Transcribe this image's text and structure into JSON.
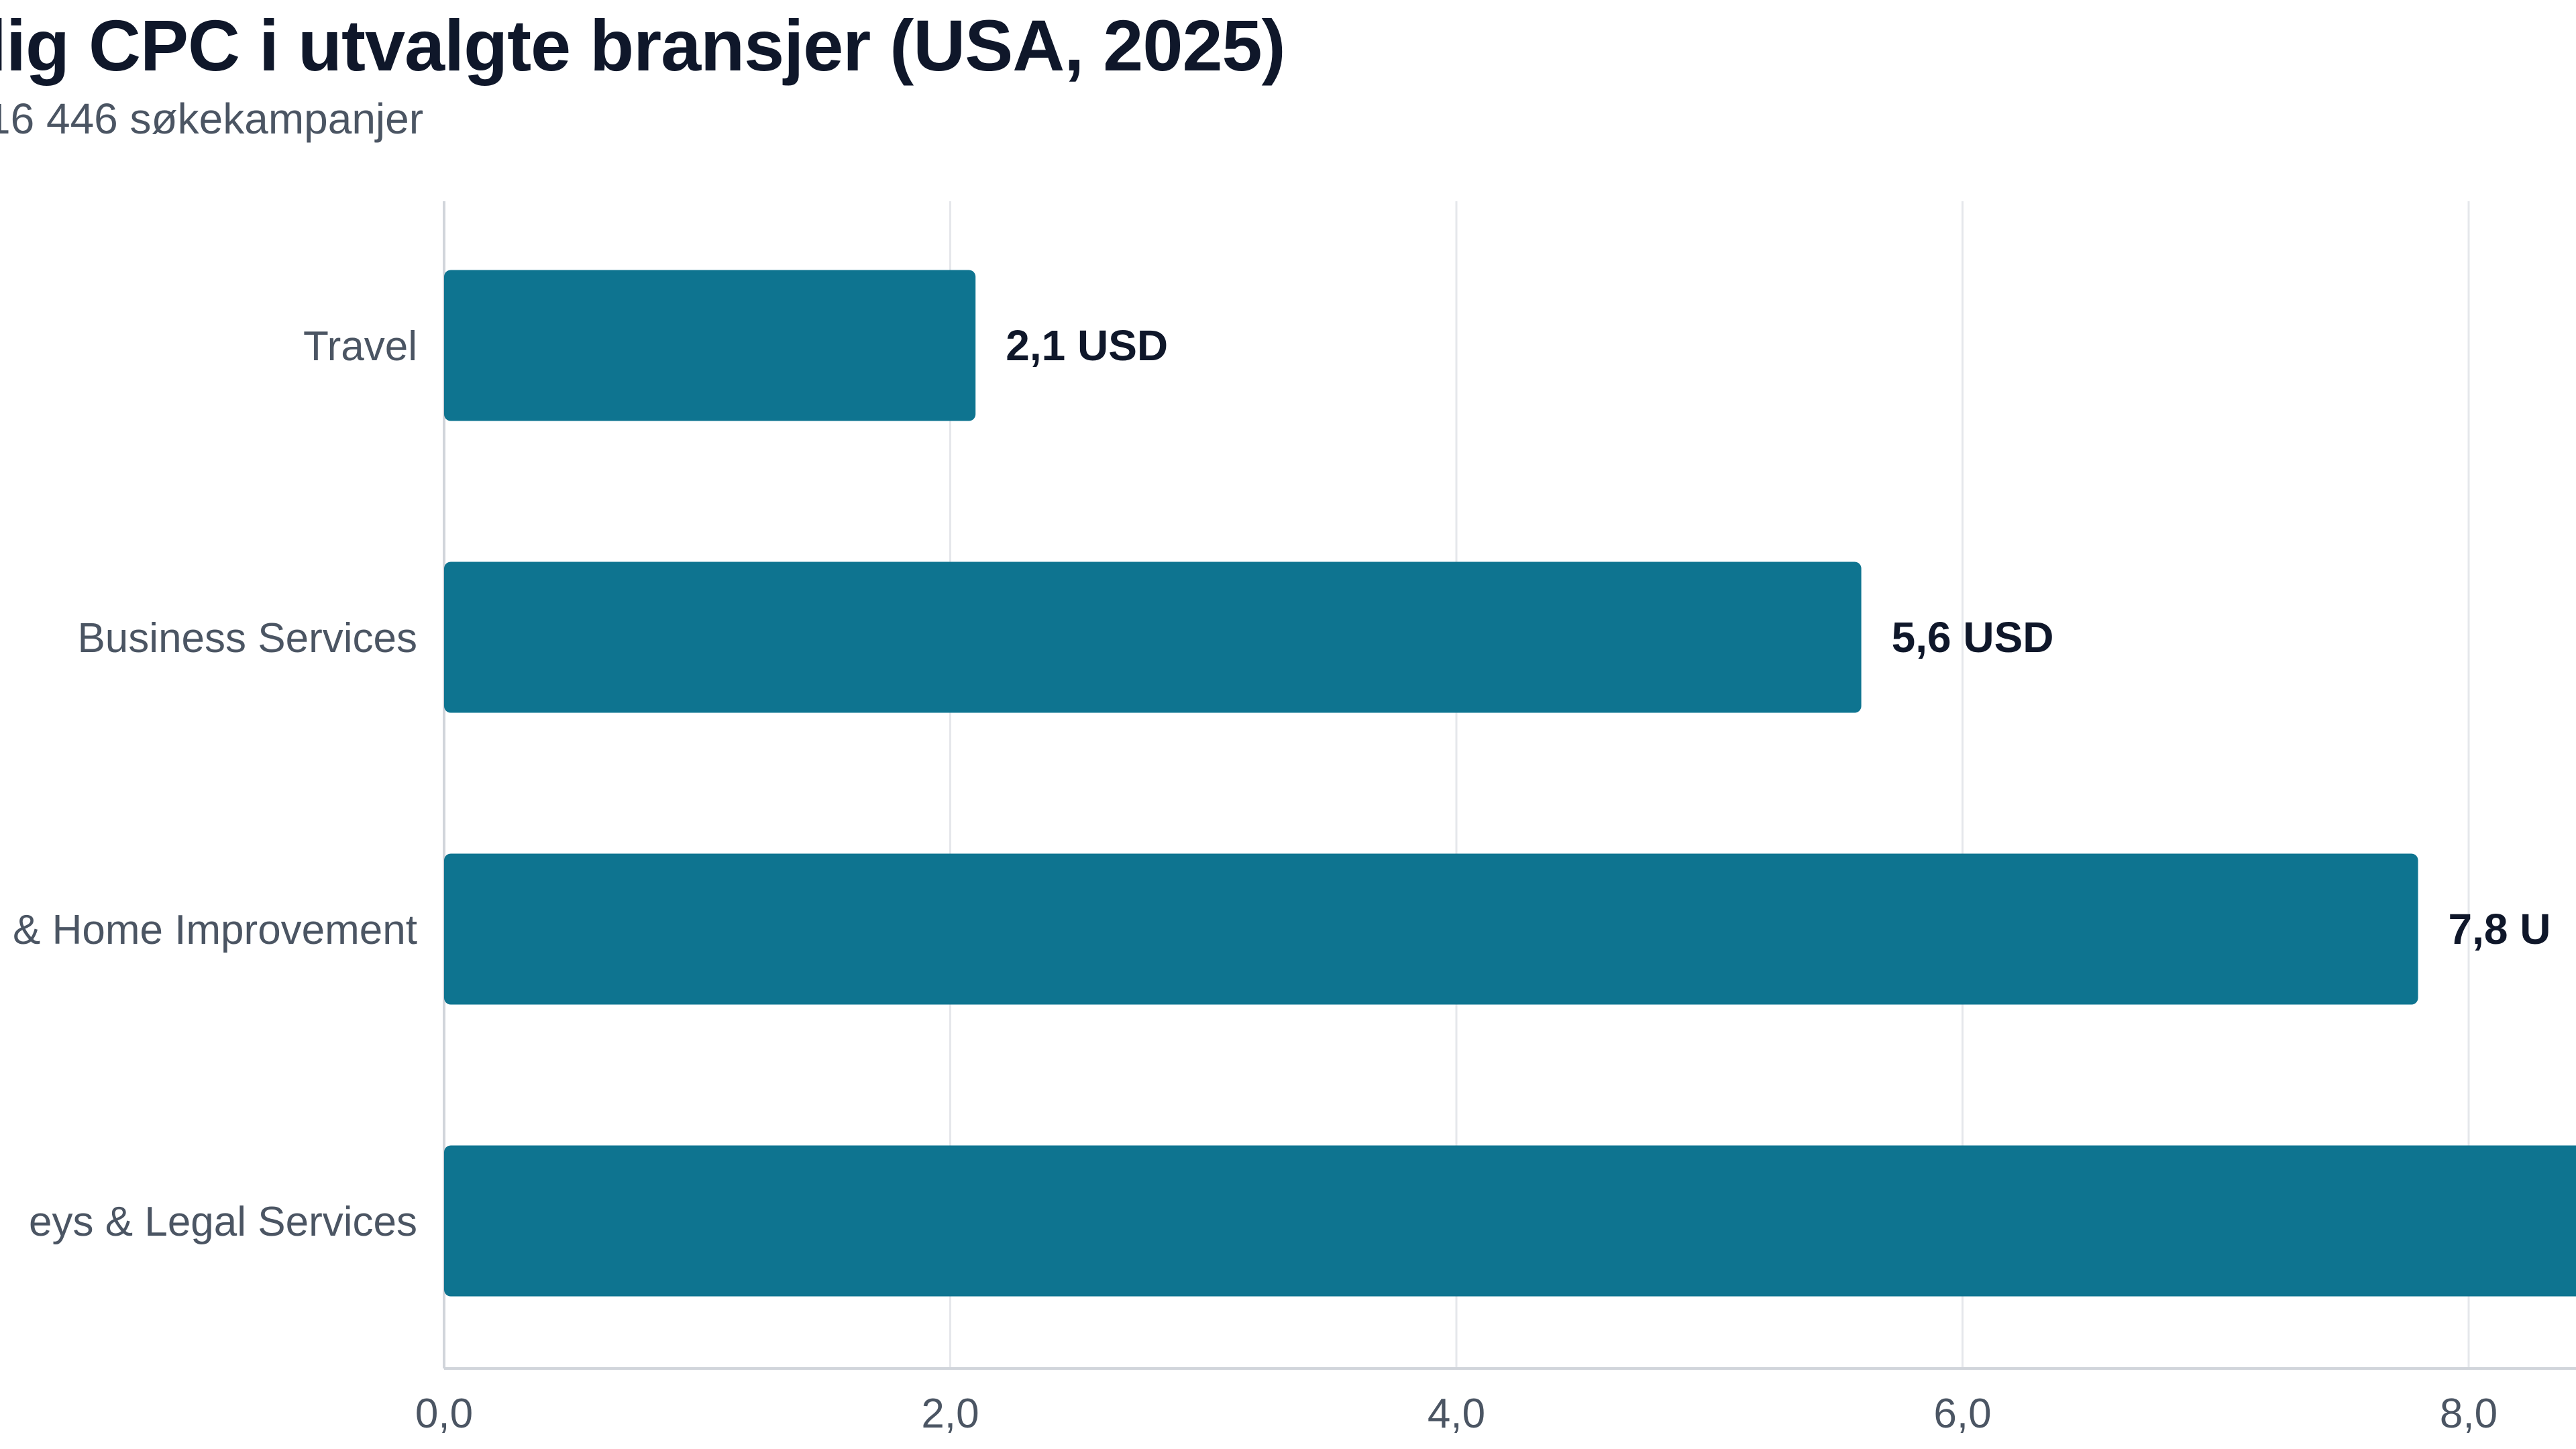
{
  "chart_data": {
    "type": "bar",
    "orientation": "horizontal",
    "title": "lig CPC i utvalgte bransjer (USA, 2025)",
    "subtitle": "16 446 søkekampanjer",
    "categories": [
      "Travel",
      "Business Services",
      "& Home Improvement",
      "eys & Legal Services"
    ],
    "values": [
      2.1,
      5.6,
      7.8,
      9.2
    ],
    "value_labels": [
      "2,1 USD",
      "5,6 USD",
      "7,8 U",
      ""
    ],
    "x_ticks": [
      0,
      2,
      4,
      6,
      8
    ],
    "x_tick_labels": [
      "0,0",
      "2,0",
      "4,0",
      "6,0",
      "8,0"
    ],
    "xlim": [
      0,
      10
    ],
    "grid": true,
    "bar_color": "#0e7490",
    "grid_color": "#e5e7eb",
    "axis_color": "#d1d5db"
  }
}
